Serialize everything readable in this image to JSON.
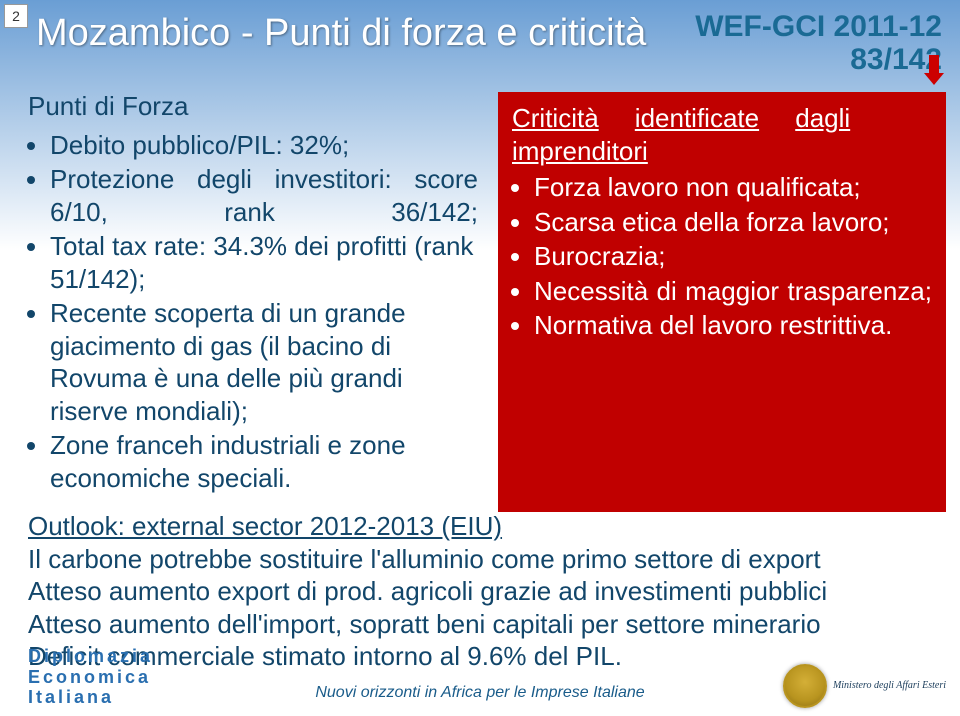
{
  "page_number": "2",
  "title": "Mozambico - Punti di forza e criticità",
  "ranking": {
    "line1": "WEF-GCI 2011-12",
    "line2": "83/142"
  },
  "left": {
    "heading": "Punti di Forza",
    "items": [
      "Debito pubblico/PIL: 32%;",
      "Protezione degli investitori: score 6/10, rank 36/142;",
      "Total tax rate: 34.3% dei profitti (rank 51/142);",
      "Recente scoperta di un grande giacimento di gas (il bacino di Rovuma è una delle più grandi riserve mondiali);",
      "Zone franceh industriali e zone economiche speciali."
    ]
  },
  "right": {
    "heading_parts": {
      "a": "Criticità",
      "b": "identificate",
      "c": "dagli",
      "d": "imprenditori"
    },
    "items": [
      "Forza lavoro non qualificata;",
      "Scarsa etica della forza lavoro;",
      "Burocrazia;",
      "Necessità di maggior trasparenza;",
      "Normativa del lavoro restrittiva."
    ]
  },
  "outlook": {
    "heading": "Outlook: external sector 2012-2013 (EIU)",
    "lines": [
      "Il carbone potrebbe sostituire l'alluminio come primo settore di export",
      "Atteso aumento export di prod. agricoli grazie ad investimenti pubblici",
      "Atteso aumento dell'import, sopratt beni capitali per settore minerario",
      "Deficit commerciale stimato intorno al 9.6% del PIL."
    ]
  },
  "footer": {
    "left_lines": [
      "Diplomazia",
      "Economica",
      "Italiana"
    ],
    "center": "Nuovi orizzonti in Africa per le Imprese Italiane",
    "ministry": "Ministero degli Affari Esteri"
  },
  "colors": {
    "title_text": "#ffffff",
    "body_text": "#12466a",
    "ranking_text": "#1a6a94",
    "red_box": "#c00000",
    "arrow": "#c00",
    "footer_blue": "#2a6fb0"
  }
}
